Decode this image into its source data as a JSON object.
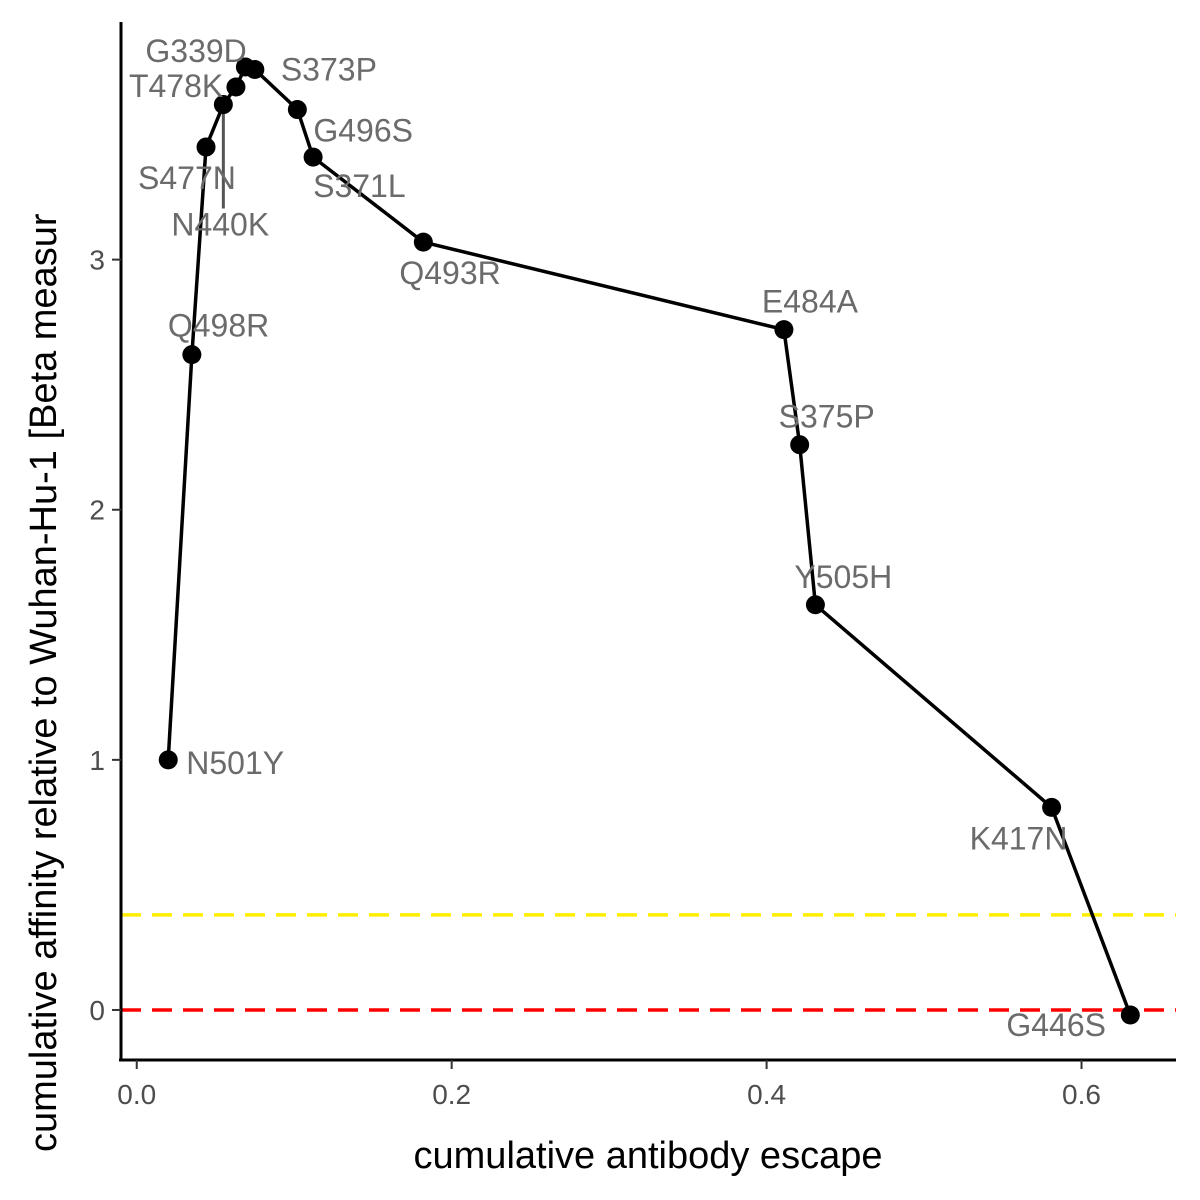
{
  "chart_data": {
    "type": "line",
    "xlabel": "cumulative antibody escape",
    "ylabel": "cumulative affinity relative to Wuhan-Hu-1 [Beta measur",
    "xlim": [
      -0.01,
      0.66
    ],
    "ylim": [
      -0.2,
      3.95
    ],
    "x_ticks": [
      0.0,
      0.2,
      0.4,
      0.6
    ],
    "x_tick_labels": [
      "0.0",
      "0.2",
      "0.4",
      "0.6"
    ],
    "y_ticks": [
      0,
      1,
      2,
      3
    ],
    "y_tick_labels": [
      "0",
      "1",
      "2",
      "3"
    ],
    "grid": false,
    "reference_lines": [
      {
        "axis": "y",
        "value": 0.38,
        "color": "#ffee00",
        "style": "dashed"
      },
      {
        "axis": "y",
        "value": 0.0,
        "color": "#ff0000",
        "style": "dashed"
      }
    ],
    "series_color": "#000000",
    "points": [
      {
        "label": "N501Y",
        "x": 0.02,
        "y": 1.0
      },
      {
        "label": "Q498R",
        "x": 0.035,
        "y": 2.62
      },
      {
        "label": "S477N",
        "x": 0.044,
        "y": 3.45
      },
      {
        "label": "N440K",
        "x": 0.055,
        "y": 3.62
      },
      {
        "label": "T478K",
        "x": 0.063,
        "y": 3.69
      },
      {
        "label": "G339D",
        "x": 0.069,
        "y": 3.77
      },
      {
        "label": "S373P",
        "x": 0.075,
        "y": 3.76
      },
      {
        "label": "G496S",
        "x": 0.102,
        "y": 3.6
      },
      {
        "label": "S371L",
        "x": 0.112,
        "y": 3.41
      },
      {
        "label": "Q493R",
        "x": 0.182,
        "y": 3.07
      },
      {
        "label": "E484A",
        "x": 0.411,
        "y": 2.72
      },
      {
        "label": "S375P",
        "x": 0.421,
        "y": 2.26
      },
      {
        "label": "Y505H",
        "x": 0.431,
        "y": 1.62
      },
      {
        "label": "K417N",
        "x": 0.581,
        "y": 0.81
      },
      {
        "label": "G446S",
        "x": 0.631,
        "y": -0.02
      }
    ]
  }
}
